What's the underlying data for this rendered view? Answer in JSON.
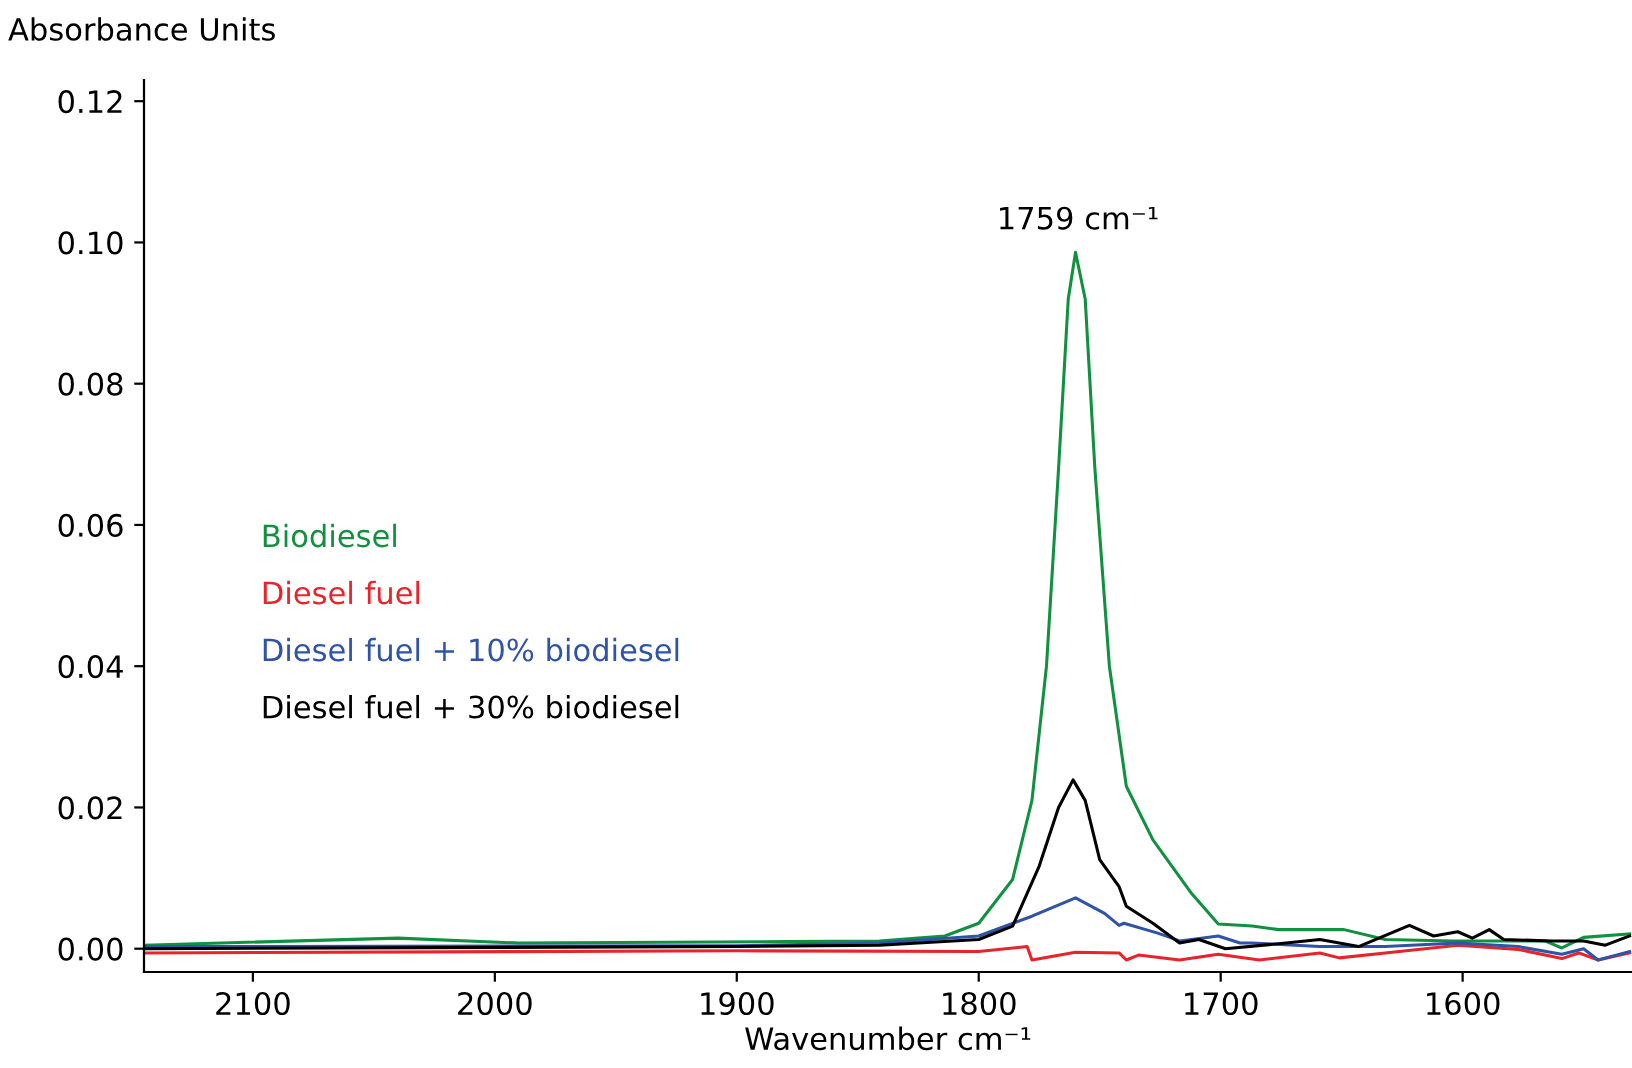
{
  "chart_data": {
    "type": "line",
    "xlabel": "Wavenumber cm⁻¹",
    "ylabel": "Absorbance Units",
    "xlim": [
      2145,
      1530
    ],
    "xticks": [
      2100,
      2000,
      1900,
      1800,
      1700,
      1600
    ],
    "ylim": [
      -0.0033,
      0.123
    ],
    "yticks": [
      {
        "value": 0,
        "label": "0.00"
      },
      {
        "value": 0.02,
        "label": "0.02"
      },
      {
        "value": 0.04,
        "label": "0.04"
      },
      {
        "value": 0.06,
        "label": "0.06"
      },
      {
        "value": 0.08,
        "label": "0.08"
      },
      {
        "value": 0.1,
        "label": "0.10"
      },
      {
        "value": 0.12,
        "label": "0.12"
      }
    ],
    "grid": false,
    "legend": "left",
    "marker": "none",
    "line_style": "solid",
    "annotations": [
      {
        "text": "1759 cm⁻¹",
        "x": 1759,
        "y": 0.0986
      }
    ],
    "series": [
      {
        "name": "Biodiesel",
        "color": "#119040",
        "x": [
          2145,
          2040,
          1990,
          1880,
          1841,
          1825,
          1814,
          1800,
          1786,
          1778,
          1772,
          1767,
          1763,
          1760,
          1756,
          1752,
          1746,
          1739,
          1728,
          1712,
          1701,
          1687,
          1676,
          1649,
          1632,
          1604,
          1566,
          1559,
          1550,
          1531
        ],
        "values": [
          0.0005,
          0.0015,
          0.0008,
          0.001,
          0.0011,
          0.0015,
          0.0018,
          0.0036,
          0.0098,
          0.021,
          0.04,
          0.068,
          0.092,
          0.0986,
          0.092,
          0.068,
          0.04,
          0.023,
          0.0154,
          0.0078,
          0.0035,
          0.0032,
          0.0027,
          0.0027,
          0.0013,
          0.0011,
          0.0011,
          0.0001,
          0.0016,
          0.0021
        ]
      },
      {
        "name": "Diesel fuel",
        "color": "#e8232a",
        "x": [
          2145,
          1900,
          1800,
          1780,
          1778,
          1760,
          1742,
          1739,
          1734,
          1717,
          1701,
          1684,
          1659,
          1651,
          1632,
          1602,
          1577,
          1559,
          1552,
          1544,
          1531
        ],
        "values": [
          -0.0006,
          -0.0003,
          -0.0004,
          0.0003,
          -0.0016,
          -0.0005,
          -0.0006,
          -0.0016,
          -0.0009,
          -0.0016,
          -0.0008,
          -0.0016,
          -0.0006,
          -0.0013,
          -0.0006,
          0.0005,
          -0.0001,
          -0.0014,
          -0.0006,
          -0.0016,
          -0.0006
        ]
      },
      {
        "name": "Diesel fuel + 10% biodiesel",
        "color": "#2f53a6",
        "x": [
          2145,
          1900,
          1841,
          1800,
          1778,
          1760,
          1748,
          1742,
          1740,
          1726,
          1717,
          1712,
          1701,
          1692,
          1687,
          1659,
          1632,
          1602,
          1577,
          1559,
          1550,
          1544,
          1531
        ],
        "values": [
          0.0003,
          0.0004,
          0.0008,
          0.0018,
          0.0046,
          0.0072,
          0.005,
          0.0033,
          0.0036,
          0.0022,
          0.0011,
          0.0013,
          0.0018,
          0.0008,
          0.0008,
          0.0003,
          0.0003,
          0.0008,
          0.0003,
          -0.0008,
          0,
          -0.0016,
          -0.0004
        ]
      },
      {
        "name": "Diesel fuel + 30% biodiesel",
        "color": "#000000",
        "x": [
          2145,
          1900,
          1841,
          1800,
          1786,
          1775,
          1767,
          1761,
          1756,
          1750,
          1742,
          1739,
          1728,
          1717,
          1709,
          1698,
          1673,
          1659,
          1643,
          1622,
          1612,
          1602,
          1596,
          1589,
          1583,
          1563,
          1550,
          1541,
          1531
        ],
        "values": [
          0,
          0.0003,
          0.0005,
          0.0013,
          0.0032,
          0.0117,
          0.02,
          0.0239,
          0.021,
          0.0126,
          0.0088,
          0.006,
          0.0036,
          0.0008,
          0.0013,
          0,
          0.0008,
          0.0013,
          0.0003,
          0.0033,
          0.0018,
          0.0024,
          0.0015,
          0.0027,
          0.0013,
          0.0011,
          0.0011,
          0.0005,
          0.0018
        ]
      }
    ]
  }
}
